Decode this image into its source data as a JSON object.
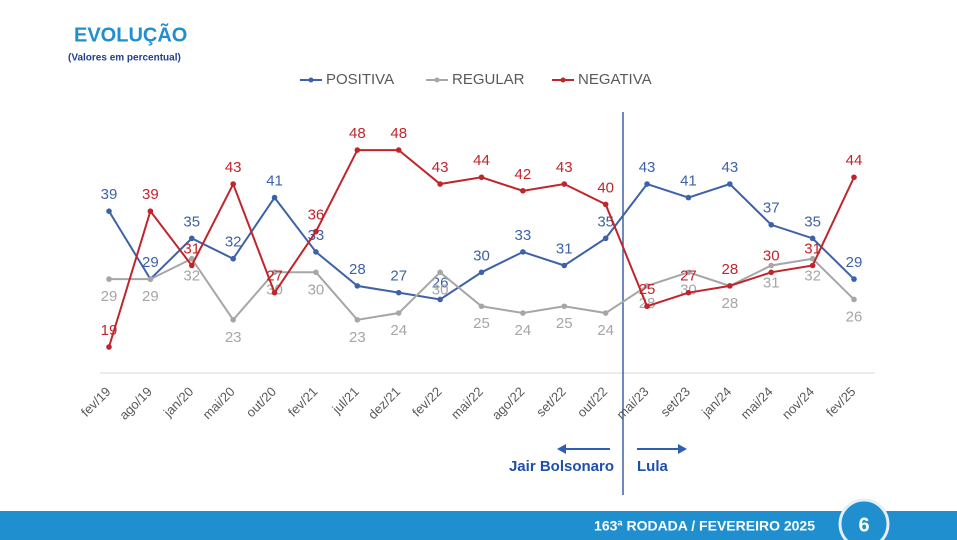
{
  "header": {
    "title": "EVOLUÇÃO",
    "subtitle": "(Valores em percentual)"
  },
  "chart_data": {
    "type": "line",
    "categories": [
      "fev/19",
      "ago/19",
      "jan/20",
      "mai/20",
      "out/20",
      "fev/21",
      "jul/21",
      "dez/21",
      "fev/22",
      "mai/22",
      "ago/22",
      "set/22",
      "out/22",
      "mai/23",
      "set/23",
      "jan/24",
      "mai/24",
      "nov/24",
      "fev/25"
    ],
    "series": [
      {
        "name": "POSITIVA",
        "color": "#3e62a8",
        "values": [
          39,
          29,
          35,
          32,
          41,
          33,
          28,
          27,
          26,
          30,
          33,
          31,
          35,
          43,
          41,
          43,
          37,
          35,
          29
        ]
      },
      {
        "name": "REGULAR",
        "color": "#a6a6a6",
        "values": [
          29,
          29,
          32,
          23,
          30,
          30,
          23,
          24,
          30,
          25,
          24,
          25,
          24,
          28,
          30,
          28,
          31,
          32,
          26
        ]
      },
      {
        "name": "NEGATIVA",
        "color": "#c0252b",
        "values": [
          19,
          39,
          31,
          43,
          27,
          36,
          48,
          48,
          43,
          44,
          42,
          43,
          40,
          25,
          27,
          28,
          30,
          31,
          44
        ]
      }
    ],
    "legend": "top",
    "annotations": [
      "Jair Bolsonaro",
      "Lula"
    ]
  },
  "footer": {
    "text": "163ª RODADA / FEVEREIRO 2025",
    "page": "6"
  }
}
